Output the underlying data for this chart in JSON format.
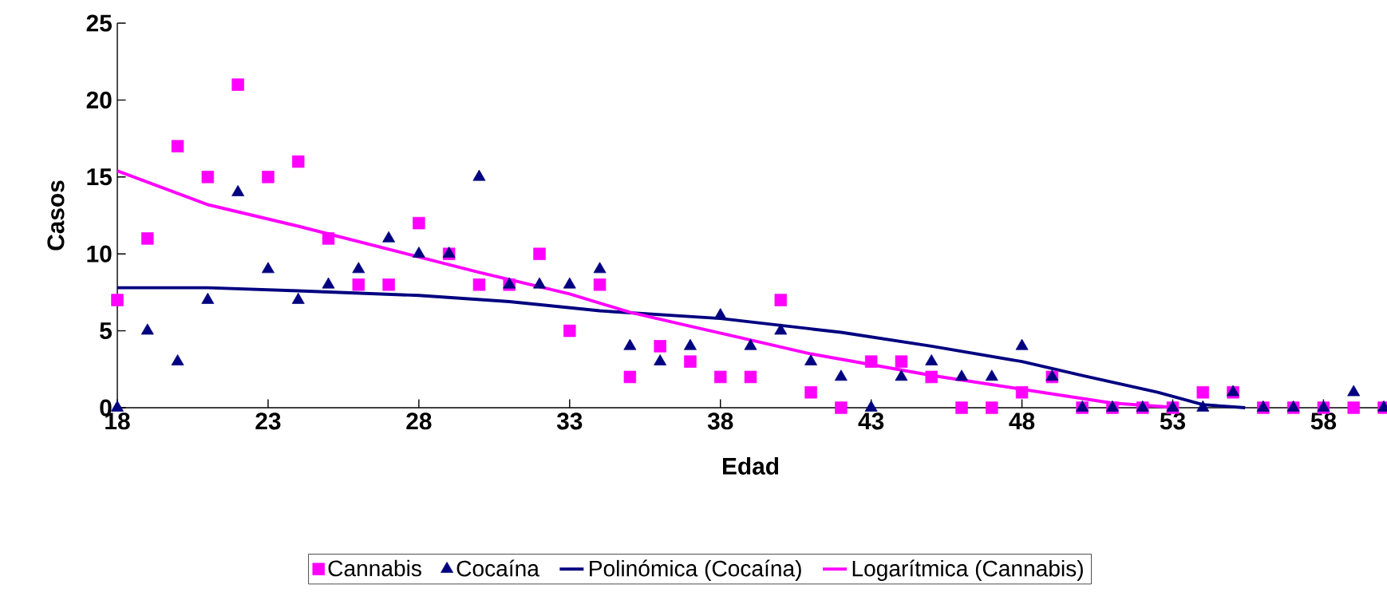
{
  "chart_data": {
    "type": "scatter",
    "xlabel": "Edad",
    "ylabel": "Casos",
    "xlim": [
      18,
      60
    ],
    "xticks": [
      18,
      23,
      28,
      33,
      38,
      43,
      48,
      53,
      58
    ],
    "ylim": [
      0,
      25
    ],
    "yticks": [
      0,
      5,
      10,
      15,
      20,
      25
    ],
    "grid": false,
    "legend": "bottom",
    "x": [
      18,
      19,
      20,
      21,
      22,
      23,
      24,
      25,
      26,
      27,
      28,
      29,
      30,
      31,
      32,
      33,
      34,
      35,
      36,
      37,
      38,
      39,
      40,
      41,
      42,
      43,
      44,
      45,
      46,
      47,
      48,
      49,
      50,
      51,
      52,
      53,
      54,
      55,
      56,
      57,
      58,
      59,
      60
    ],
    "series": [
      {
        "name": "Cannabis",
        "marker": "square",
        "color": "#ff00ff",
        "values": [
          7,
          11,
          17,
          15,
          21,
          15,
          16,
          11,
          8,
          8,
          12,
          10,
          8,
          8,
          10,
          5,
          8,
          2,
          4,
          3,
          2,
          2,
          7,
          1,
          0,
          3,
          3,
          2,
          0,
          0,
          1,
          2,
          0,
          0,
          0,
          0,
          1,
          1,
          0,
          0,
          0,
          0,
          0
        ]
      },
      {
        "name": "Cocaína",
        "marker": "triangle",
        "color": "#000080",
        "values": [
          0,
          5,
          3,
          7,
          14,
          9,
          7,
          8,
          9,
          11,
          10,
          10,
          15,
          8,
          8,
          8,
          9,
          4,
          3,
          4,
          6,
          4,
          5,
          3,
          2,
          0,
          2,
          3,
          2,
          2,
          4,
          2,
          0,
          0,
          0,
          0,
          0,
          1,
          0,
          0,
          0,
          1,
          0
        ]
      },
      {
        "name": "Polinómica (Cocaína)",
        "type": "line",
        "marker": "none",
        "color": "#000080",
        "x": [
          18,
          21,
          24,
          28,
          31,
          34,
          38,
          42,
          45,
          48,
          50,
          52.5,
          54,
          55.4
        ],
        "values": [
          7.8,
          7.8,
          7.6,
          7.3,
          6.9,
          6.3,
          5.8,
          4.9,
          4.0,
          3.0,
          2.1,
          1.0,
          0.2,
          0
        ]
      },
      {
        "name": "Logarítmica (Cannabis)",
        "type": "line",
        "marker": "none",
        "color": "#ff00ff",
        "x": [
          18,
          21,
          24,
          27,
          30,
          33,
          35,
          37,
          39,
          41,
          43,
          45,
          47,
          49,
          51,
          53.2
        ],
        "values": [
          15.4,
          13.2,
          11.8,
          10.3,
          8.8,
          7.4,
          6.2,
          5.3,
          4.4,
          3.5,
          2.8,
          2.1,
          1.5,
          0.9,
          0.3,
          0
        ]
      }
    ]
  }
}
